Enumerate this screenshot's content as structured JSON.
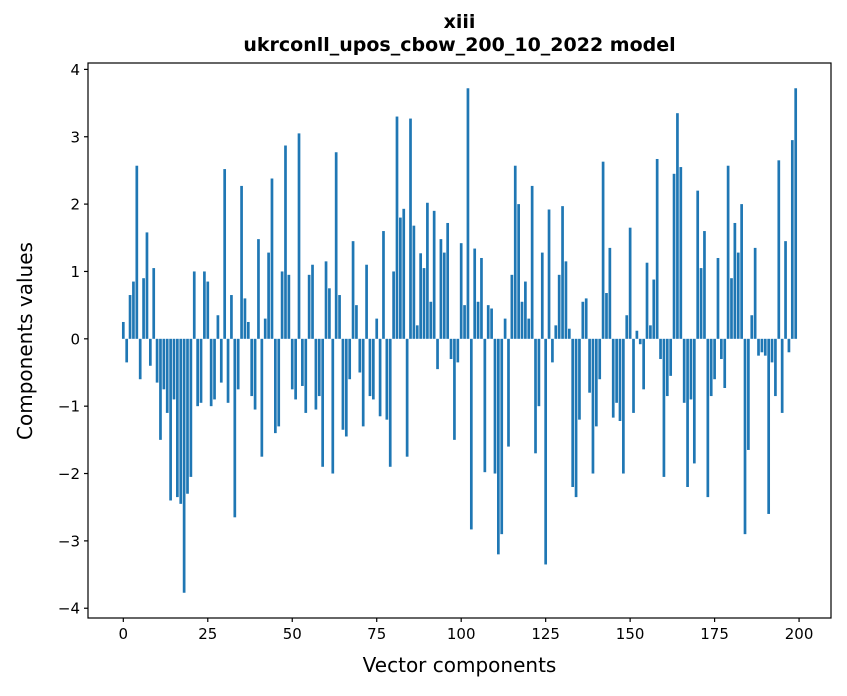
{
  "title": {
    "line1": "xiii",
    "line2": "ukrconll_upos_cbow_200_10_2022 model"
  },
  "chart_data": {
    "type": "bar",
    "title": "xiii\nukrconll_upos_cbow_200_10_2022 model",
    "xlabel": "Vector components",
    "ylabel": "Components values",
    "bar_color": "#1f77b4",
    "n_bars": 200,
    "x_start": 0,
    "x_step": 1,
    "xlim": [
      -10.45,
      209.45
    ],
    "ylim": [
      -4.145,
      4.095
    ],
    "grid": false,
    "legend": null,
    "x_tick_values": [
      0,
      25,
      50,
      75,
      100,
      125,
      150,
      175,
      200
    ],
    "x_tick_labels": [
      "0",
      "25",
      "50",
      "75",
      "100",
      "125",
      "150",
      "175",
      "200"
    ],
    "y_tick_values": [
      -4,
      -3,
      -2,
      -1,
      0,
      1,
      2,
      3,
      4
    ],
    "y_tick_labels": [
      "−4",
      "−3",
      "−2",
      "−1",
      "0",
      "1",
      "2",
      "3",
      "4"
    ],
    "values": [
      0.25,
      -0.35,
      0.65,
      0.85,
      2.57,
      -0.6,
      0.9,
      1.58,
      -0.4,
      1.05,
      -0.65,
      -1.5,
      -0.75,
      -1.1,
      -2.4,
      -0.9,
      -2.35,
      -2.45,
      -3.77,
      -2.3,
      -2.05,
      1.0,
      -1.0,
      -0.95,
      1.0,
      0.85,
      -1.0,
      -0.9,
      0.35,
      -0.65,
      2.52,
      -0.95,
      0.65,
      -2.65,
      -0.75,
      2.27,
      0.6,
      0.25,
      -0.85,
      -1.05,
      1.48,
      -1.75,
      0.3,
      1.28,
      2.38,
      -1.4,
      -1.3,
      1.0,
      2.87,
      0.95,
      -0.75,
      -0.9,
      3.05,
      -0.7,
      -1.1,
      0.95,
      1.1,
      -1.05,
      -0.85,
      -1.9,
      1.15,
      0.75,
      -2.0,
      2.77,
      0.65,
      -1.35,
      -1.45,
      -0.6,
      1.45,
      0.5,
      -0.5,
      -1.3,
      1.1,
      -0.85,
      -0.9,
      0.3,
      -1.15,
      1.6,
      -1.2,
      -1.9,
      1.0,
      3.3,
      1.8,
      1.93,
      -1.75,
      3.27,
      1.68,
      0.2,
      1.27,
      1.05,
      2.02,
      0.55,
      1.9,
      -0.45,
      1.48,
      1.28,
      1.72,
      -0.3,
      -1.5,
      -0.35,
      1.42,
      0.5,
      3.72,
      -2.83,
      1.34,
      0.55,
      1.2,
      -1.98,
      0.5,
      0.45,
      -2.0,
      -3.2,
      -2.9,
      0.3,
      -1.6,
      0.95,
      2.57,
      2.0,
      0.55,
      0.85,
      0.3,
      2.27,
      -1.7,
      -1.0,
      1.28,
      -3.35,
      1.92,
      -0.35,
      0.2,
      0.95,
      1.97,
      1.15,
      0.15,
      -2.2,
      -2.35,
      -1.2,
      0.55,
      0.6,
      -0.8,
      -2.0,
      -1.3,
      -0.6,
      2.63,
      0.68,
      1.35,
      -1.17,
      -0.95,
      -1.22,
      -2.0,
      0.35,
      1.65,
      -1.1,
      0.12,
      -0.08,
      -0.75,
      1.13,
      0.2,
      0.88,
      2.67,
      -0.3,
      -2.05,
      -0.85,
      -0.55,
      2.45,
      3.35,
      2.55,
      -0.95,
      -2.2,
      -0.9,
      -1.85,
      2.2,
      1.05,
      1.6,
      -2.35,
      -0.85,
      -0.6,
      1.2,
      -0.3,
      -0.73,
      2.57,
      0.9,
      1.72,
      1.28,
      2.0,
      -2.9,
      -1.65,
      0.35,
      1.35,
      -0.25,
      -0.2,
      -0.25,
      -2.6,
      -0.35,
      -0.85,
      2.65,
      -1.1,
      1.45,
      -0.2,
      2.95,
      3.72
    ]
  }
}
